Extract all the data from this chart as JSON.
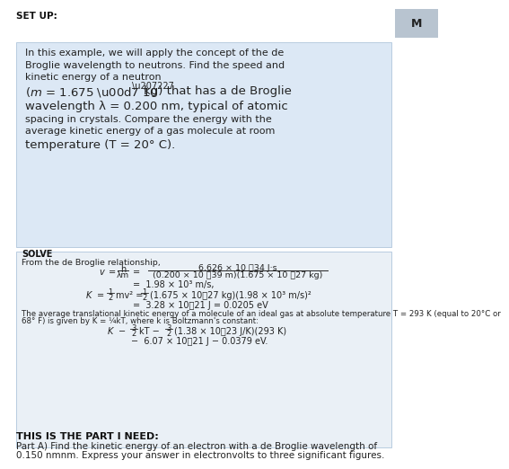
{
  "bg_color": "#ffffff",
  "setup_box_color": "#dce8f5",
  "solve_box_color": "#eaf0f6",
  "text_color": "#222222",
  "header_bold_color": "#111111",
  "right_tab_color": "#b8c4d0",
  "setup_label": "SET UP:",
  "right_label": "M",
  "solve_label": "SOLVE",
  "from_text": "From the de Broglie relationship,",
  "avg_text1": "The average translational kinetic energy of a molecule of an ideal gas at absolute temperature T = 293 K (equal to 20°C or",
  "avg_text2": "68° F) is given by K = ¼kT, where k is Boltzmann's constant:",
  "part_header": "THIS IS THE PART I NEED:",
  "part_text1": "Part A) Find the kinetic energy of an electron with a de Broglie wavelength of",
  "part_text2": "0.150 nmnm. Express your answer in electronvolts to three significant figures."
}
